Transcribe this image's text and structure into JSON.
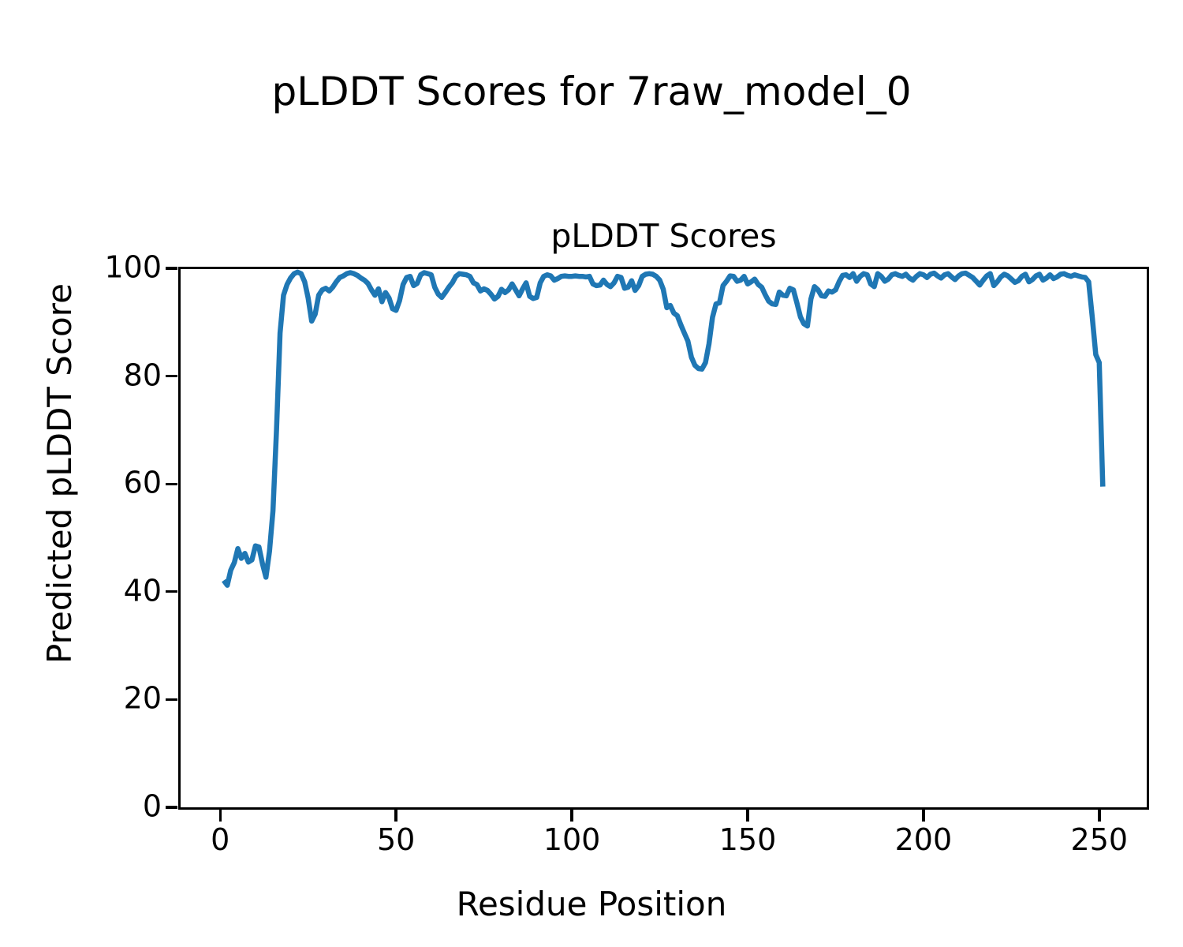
{
  "figure": {
    "suptitle": "pLDDT Scores for 7raw_model_0",
    "background_color": "#ffffff",
    "text_color": "#000000"
  },
  "chart_data": {
    "type": "line",
    "title": "pLDDT Scores",
    "xlabel": "Residue Position",
    "ylabel": "Predicted pLDDT Score",
    "x_start": 1,
    "x_step": 1,
    "values": [
      42.1,
      41.2,
      44.0,
      45.4,
      48.0,
      46.2,
      47.1,
      45.5,
      45.9,
      48.5,
      48.3,
      45.2,
      42.7,
      47.5,
      55.0,
      70.0,
      88.0,
      95.0,
      97.0,
      98.2,
      99.0,
      99.3,
      99.0,
      97.5,
      94.5,
      90.2,
      91.5,
      95.0,
      96.0,
      96.3,
      95.8,
      96.5,
      97.5,
      98.3,
      98.6,
      99.0,
      99.2,
      99.0,
      98.7,
      98.2,
      97.8,
      97.2,
      96.0,
      95.0,
      96.2,
      93.8,
      95.5,
      94.5,
      92.5,
      92.2,
      94.0,
      97.0,
      98.3,
      98.5,
      96.8,
      97.2,
      98.8,
      99.2,
      99.0,
      98.8,
      96.5,
      95.2,
      94.6,
      95.5,
      96.5,
      97.3,
      98.5,
      99.0,
      98.9,
      98.8,
      98.5,
      97.3,
      97.0,
      95.8,
      96.2,
      95.9,
      95.2,
      94.3,
      94.8,
      96.1,
      95.5,
      96.0,
      97.1,
      96.0,
      94.9,
      96.2,
      97.3,
      94.8,
      94.4,
      94.6,
      97.3,
      98.5,
      98.8,
      98.6,
      97.8,
      98.1,
      98.5,
      98.6,
      98.5,
      98.5,
      98.6,
      98.5,
      98.5,
      98.4,
      98.5,
      97.1,
      96.8,
      96.9,
      97.8,
      97.0,
      96.6,
      97.3,
      98.5,
      98.3,
      96.3,
      96.5,
      97.7,
      95.9,
      96.8,
      98.5,
      98.9,
      99.0,
      98.9,
      98.5,
      97.8,
      96.1,
      92.7,
      93.1,
      91.7,
      91.2,
      89.5,
      88.0,
      86.5,
      83.5,
      82.0,
      81.4,
      81.3,
      82.5,
      86.0,
      90.9,
      93.4,
      93.6,
      96.8,
      97.6,
      98.6,
      98.5,
      97.6,
      97.8,
      98.5,
      97.1,
      97.5,
      98.0,
      97.0,
      96.5,
      95.1,
      93.9,
      93.4,
      93.3,
      95.6,
      95.0,
      94.9,
      96.3,
      96.0,
      93.6,
      91.0,
      89.7,
      89.3,
      94.3,
      96.6,
      96.0,
      94.9,
      94.8,
      95.8,
      95.6,
      96.0,
      97.5,
      98.7,
      98.8,
      98.3,
      99.0,
      97.6,
      98.5,
      99.0,
      98.8,
      97.1,
      96.6,
      99.0,
      98.5,
      97.6,
      98.0,
      98.8,
      99.0,
      98.7,
      98.5,
      98.9,
      98.2,
      97.8,
      98.5,
      99.0,
      98.8,
      98.3,
      98.9,
      99.1,
      98.6,
      98.2,
      98.8,
      99.0,
      98.4,
      97.9,
      98.6,
      99.0,
      99.1,
      98.7,
      98.3,
      97.6,
      96.9,
      97.8,
      98.6,
      99.0,
      96.8,
      97.5,
      98.4,
      98.9,
      98.6,
      98.0,
      97.4,
      97.7,
      98.5,
      98.9,
      97.5,
      97.9,
      98.6,
      98.9,
      97.8,
      98.2,
      98.8,
      98.1,
      98.4,
      98.9,
      99.0,
      98.7,
      98.5,
      98.8,
      98.6,
      98.4,
      98.3,
      97.5,
      91.0,
      84.0,
      82.5,
      59.5
    ],
    "xlim": [
      -11.5,
      263.5
    ],
    "ylim": [
      0,
      100
    ],
    "xticks": [
      0,
      50,
      100,
      150,
      200,
      250
    ],
    "yticks": [
      0,
      20,
      40,
      60,
      80,
      100
    ],
    "grid": false,
    "legend_position": "none",
    "line_color": "#1f77b4"
  }
}
